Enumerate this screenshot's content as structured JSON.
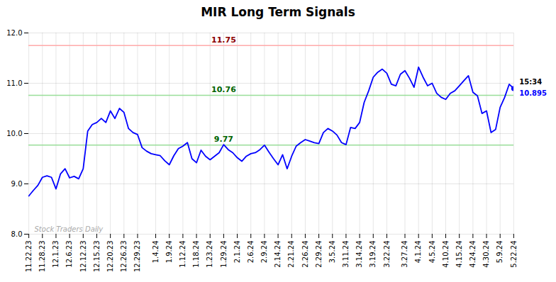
{
  "chart_data": {
    "type": "line",
    "title": "MIR Long Term Signals",
    "color": "blue",
    "categories": [
      "11.22.23",
      null,
      null,
      "11.28.23",
      null,
      null,
      "12.1.23",
      null,
      null,
      "12.6.23",
      null,
      null,
      "12.12.23",
      null,
      null,
      "12.15.23",
      null,
      null,
      "12.20.23",
      null,
      null,
      "12.26.23",
      null,
      null,
      "12.29.23",
      null,
      null,
      null,
      "1.4.24",
      null,
      null,
      "1.9.24",
      null,
      null,
      "1.12.24",
      null,
      null,
      "1.18.24",
      null,
      null,
      "1.23.24",
      null,
      null,
      "1.29.24",
      null,
      null,
      "2.1.24",
      null,
      null,
      "2.6.24",
      null,
      null,
      "2.9.24",
      null,
      null,
      "2.14.24",
      null,
      null,
      "2.21.24",
      null,
      null,
      "2.26.24",
      null,
      null,
      "2.29.24",
      null,
      null,
      "3.5.24",
      null,
      null,
      "3.11.24",
      null,
      null,
      "3.14.24",
      null,
      null,
      "3.19.24",
      null,
      null,
      "3.22.24",
      null,
      null,
      null,
      "3.27.24",
      null,
      null,
      "4.1.24",
      null,
      null,
      "4.5.24",
      null,
      null,
      "4.10.24",
      null,
      null,
      "4.15.24",
      null,
      null,
      "4.24.24",
      null,
      null,
      "4.30.24",
      null,
      null,
      "5.9.24",
      null,
      null,
      "5.22.24"
    ],
    "values": [
      8.76,
      8.87,
      8.97,
      9.13,
      9.16,
      9.13,
      8.9,
      9.2,
      9.3,
      9.12,
      9.15,
      9.1,
      9.3,
      10.05,
      10.18,
      10.22,
      10.3,
      10.22,
      10.45,
      10.3,
      10.5,
      10.42,
      10.1,
      10.02,
      9.98,
      9.72,
      9.65,
      9.6,
      9.58,
      9.56,
      9.46,
      9.38,
      9.56,
      9.7,
      9.75,
      9.82,
      9.5,
      9.42,
      9.67,
      9.55,
      9.48,
      9.55,
      9.62,
      9.78,
      9.68,
      9.62,
      9.52,
      9.45,
      9.55,
      9.6,
      9.62,
      9.68,
      9.77,
      9.63,
      9.5,
      9.38,
      9.58,
      9.3,
      9.55,
      9.75,
      9.82,
      9.88,
      9.85,
      9.82,
      9.8,
      10.02,
      10.1,
      10.05,
      9.97,
      9.82,
      9.78,
      10.12,
      10.1,
      10.22,
      10.62,
      10.85,
      11.12,
      11.22,
      11.28,
      11.2,
      10.98,
      10.95,
      11.18,
      11.25,
      11.1,
      10.92,
      11.32,
      11.12,
      10.95,
      11.0,
      10.8,
      10.72,
      10.68,
      10.8,
      10.85,
      10.95,
      11.05,
      11.15,
      10.82,
      10.75,
      10.4,
      10.45,
      10.02,
      10.08,
      10.52,
      10.72,
      10.98,
      10.895
    ],
    "ylim": [
      8,
      12
    ],
    "yticks": [
      8,
      9,
      10,
      11,
      12
    ],
    "grid": true,
    "hlines": [
      {
        "value": 11.75,
        "color": "#ffaaaa",
        "label_color": "darkred"
      },
      {
        "value": 10.76,
        "color": "#99dd99",
        "label_color": "darkgreen"
      },
      {
        "value": 9.77,
        "color": "#99dd99",
        "label_color": "darkgreen"
      }
    ],
    "annotations": [
      {
        "text": "15:34",
        "color": "black"
      },
      {
        "text": "10.895",
        "color": "blue"
      }
    ],
    "watermark": {
      "text": "Stock Traders Daily",
      "color": "#aaaaaa"
    }
  }
}
